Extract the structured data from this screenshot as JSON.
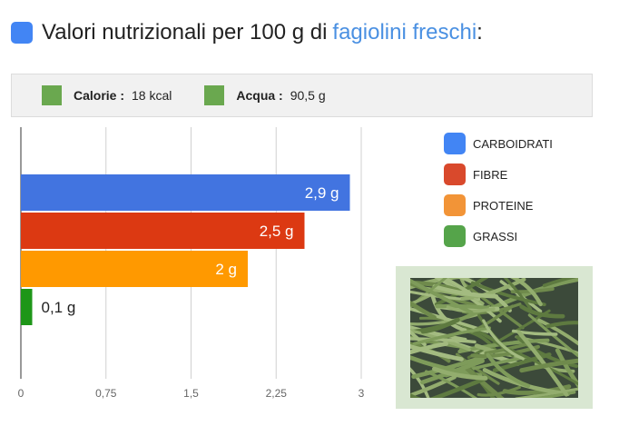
{
  "header": {
    "title": "Valori nutrizionali per 100 g di",
    "title_link": "fagiolini freschi",
    "title_suffix": ":",
    "square_color": "#4285f4",
    "link_color": "#4a90e2"
  },
  "info": {
    "calorie_label": "Calorie :",
    "calorie_value": "18 kcal",
    "acqua_label": "Acqua :",
    "acqua_value": "90,5 g",
    "square_color": "#6aa84f"
  },
  "chart_data": {
    "type": "bar",
    "orientation": "horizontal",
    "categories": [
      "CARBOIDRATI",
      "FIBRE",
      "PROTEINE",
      "GRASSI"
    ],
    "values": [
      2.9,
      2.5,
      2,
      0.1
    ],
    "value_labels": [
      "2,9 g",
      "2,5 g",
      "2 g",
      "0,1 g"
    ],
    "colors": [
      "#4274e0",
      "#dc3912",
      "#ff9900",
      "#1e9618"
    ],
    "xlim": [
      0,
      3
    ],
    "ticks": [
      0,
      0.75,
      1.5,
      2.25,
      3
    ],
    "tick_labels": [
      "0",
      "0,75",
      "1,5",
      "2,25",
      "3"
    ],
    "grid": true,
    "legend_position": "right"
  },
  "legend": {
    "items": [
      {
        "label": "CARBOIDRATI",
        "color": "#4285f4"
      },
      {
        "label": "FIBRE",
        "color": "#d9492c"
      },
      {
        "label": "PROTEINE",
        "color": "#f29437"
      },
      {
        "label": "GRASSI",
        "color": "#55a44a"
      }
    ]
  },
  "photo": {
    "background_color": "#3c4a3a",
    "bean_colors": [
      "#7e9b5a",
      "#93ad6e",
      "#6f8a4c",
      "#a3bb80",
      "#5e7a40"
    ]
  }
}
